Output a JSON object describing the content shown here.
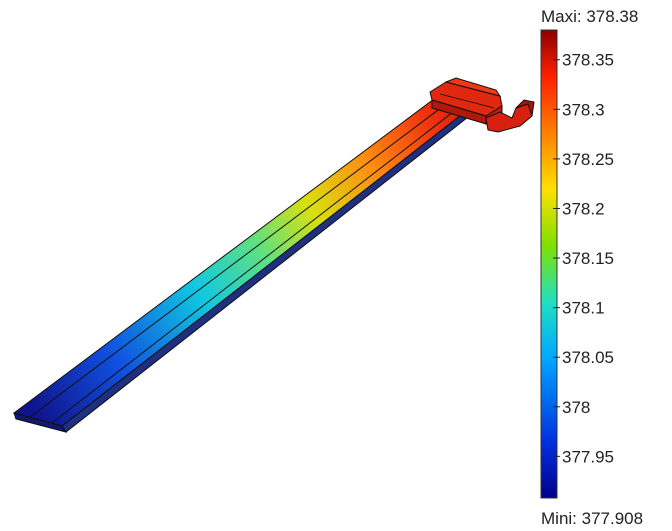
{
  "legend": {
    "max_label": "Maxi: 378.38",
    "min_label": "Mini: 377.908",
    "max_value": 378.38,
    "min_value": 377.908,
    "ticks": [
      "378.35",
      "378.3",
      "378.25",
      "378.2",
      "378.15",
      "378.1",
      "378.05",
      "378",
      "377.95"
    ],
    "tick_values": [
      378.35,
      378.3,
      378.25,
      378.2,
      378.15,
      378.1,
      378.05,
      378.0,
      377.95
    ],
    "colormap": [
      "#00008c",
      "#0050ff",
      "#00c8ff",
      "#20e0a0",
      "#80e000",
      "#ffe000",
      "#ff8000",
      "#ff2000",
      "#8c0000"
    ]
  }
}
